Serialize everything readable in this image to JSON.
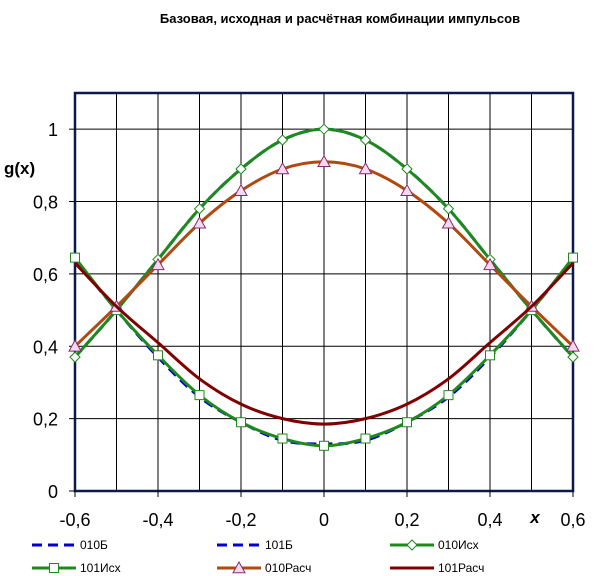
{
  "chart_data": {
    "type": "line",
    "title": "Базовая, исходная и расчётная комбинации импульсов",
    "xlabel": "x",
    "ylabel": "g(x)",
    "xlim": [
      -0.6,
      0.6
    ],
    "ylim": [
      0,
      1.1
    ],
    "x_ticks": [
      "-0,6",
      "-0,4",
      "-0,2",
      "0",
      "0,2",
      "0,4",
      "0,6"
    ],
    "y_ticks": [
      "0",
      "0,2",
      "0,4",
      "0,6",
      "0,8",
      "1"
    ],
    "x_tick_values": [
      -0.6,
      -0.4,
      -0.2,
      0,
      0.2,
      0.4,
      0.6
    ],
    "y_tick_values": [
      0,
      0.2,
      0.4,
      0.6,
      0.8,
      1.0
    ],
    "grid": true,
    "legend_position": "bottom",
    "x": [
      -0.6,
      -0.5,
      -0.4,
      -0.3,
      -0.2,
      -0.1,
      0,
      0.1,
      0.2,
      0.3,
      0.4,
      0.5,
      0.6
    ],
    "series": [
      {
        "name": "010Б",
        "color": "#0000cc",
        "dash": true,
        "marker": "none",
        "values": [
          0.37,
          0.5,
          0.64,
          0.78,
          0.89,
          0.97,
          1.0,
          0.97,
          0.89,
          0.78,
          0.64,
          0.5,
          0.37
        ]
      },
      {
        "name": "101Б",
        "color": "#0000cc",
        "dash": true,
        "marker": "none",
        "values": [
          0.64,
          0.5,
          0.37,
          0.26,
          0.19,
          0.14,
          0.13,
          0.14,
          0.19,
          0.26,
          0.37,
          0.5,
          0.64
        ]
      },
      {
        "name": "010Исх",
        "color": "#1e8a1e",
        "dash": false,
        "marker": "diamond",
        "values": [
          0.37,
          0.5,
          0.64,
          0.78,
          0.89,
          0.97,
          1.0,
          0.97,
          0.89,
          0.78,
          0.64,
          0.5,
          0.37
        ]
      },
      {
        "name": "101Исх",
        "color": "#1e8a1e",
        "dash": false,
        "marker": "square",
        "values": [
          0.645,
          0.5,
          0.375,
          0.265,
          0.19,
          0.145,
          0.125,
          0.145,
          0.19,
          0.265,
          0.375,
          0.5,
          0.645
        ]
      },
      {
        "name": "010Расч",
        "color": "#b04a10",
        "dash": false,
        "marker": "triangle",
        "values": [
          0.4,
          0.51,
          0.625,
          0.74,
          0.83,
          0.89,
          0.91,
          0.89,
          0.83,
          0.74,
          0.625,
          0.51,
          0.4
        ]
      },
      {
        "name": "101Расч",
        "color": "#800000",
        "dash": false,
        "marker": "none",
        "values": [
          0.63,
          0.51,
          0.41,
          0.31,
          0.24,
          0.2,
          0.185,
          0.2,
          0.24,
          0.31,
          0.41,
          0.51,
          0.63
        ]
      }
    ]
  }
}
